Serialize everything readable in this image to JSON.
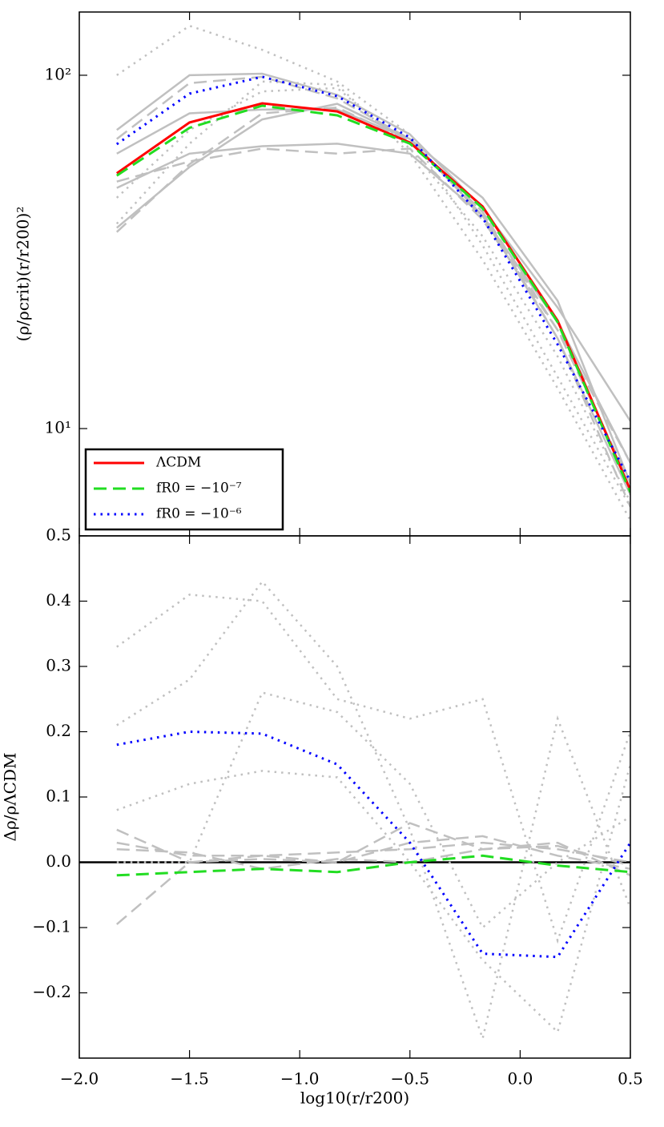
{
  "chart_data": [
    {
      "type": "line",
      "yscale": "log",
      "ylabel": "(ρ/ρcrit)(r/r200)²",
      "x": [
        -1.83,
        -1.5,
        -1.17,
        -0.83,
        -0.5,
        -0.17,
        0.17,
        0.5
      ],
      "xlim": [
        -2.0,
        0.5
      ],
      "xticks": [
        {
          "value": -2.0,
          "label": "−2.0"
        },
        {
          "value": -1.5,
          "label": "−1.5"
        },
        {
          "value": -1.0,
          "label": "−1.0"
        },
        {
          "value": -0.5,
          "label": "−0.5"
        },
        {
          "value": 0.0,
          "label": "0.0"
        },
        {
          "value": 0.5,
          "label": "0.5"
        }
      ],
      "ylim": [
        4.97,
        151
      ],
      "yticks": [
        {
          "value": 10,
          "label": "10¹"
        },
        {
          "value": 100,
          "label": "10²"
        }
      ],
      "legend": "lower left",
      "series": [
        {
          "color": "#c0c0c0",
          "style": "solid",
          "values": [
            70,
            100,
            101,
            88,
            68,
            42,
            22,
            10.5
          ]
        },
        {
          "color": "#c0c0c0",
          "style": "solid",
          "values": [
            37,
            55,
            75,
            83,
            66,
            40,
            20,
            8
          ]
        },
        {
          "color": "#c0c0c0",
          "style": "solid",
          "values": [
            48,
            60,
            63,
            64,
            60,
            40,
            18,
            6.5
          ]
        },
        {
          "color": "#c0c0c0",
          "style": "solid",
          "values": [
            60,
            78,
            80,
            80,
            66,
            45,
            23,
            7
          ]
        },
        {
          "color": "#c0c0c0",
          "style": "dashed",
          "values": [
            36,
            56,
            78,
            81,
            65,
            41,
            18,
            6
          ]
        },
        {
          "color": "#c0c0c0",
          "style": "dashed",
          "values": [
            50,
            57,
            62,
            60,
            62,
            39,
            19,
            8
          ]
        },
        {
          "color": "#c0c0c0",
          "style": "dashed",
          "values": [
            66,
            95,
            99,
            86,
            66,
            41,
            19,
            7
          ]
        },
        {
          "color": "#c0c0c0",
          "style": "dotted",
          "values": [
            100,
            138,
            118,
            96,
            68,
            33,
            14,
            6
          ]
        },
        {
          "color": "#c0c0c0",
          "style": "dotted",
          "values": [
            38,
            64,
            96,
            94,
            60,
            30,
            13,
            5.5
          ]
        },
        {
          "color": "#c0c0c0",
          "style": "dotted",
          "values": [
            45,
            70,
            90,
            92,
            62,
            35,
            16,
            6.2
          ]
        },
        {
          "name": "ΛCDM",
          "color": "#ff0000",
          "style": "solid",
          "values": [
            52.8,
            73.5,
            83.3,
            79,
            64.5,
            42.5,
            20.2,
            6.7
          ]
        },
        {
          "name": "fR0 = −10⁻⁷",
          "color": "#22dd22",
          "style": "dashed",
          "values": [
            52,
            71,
            82,
            77,
            64,
            42,
            20,
            6.6
          ]
        },
        {
          "name": "fR0 = −10⁻⁶",
          "color": "#0000ff",
          "style": "dotted",
          "values": [
            63.8,
            88.7,
            99,
            87.3,
            66.6,
            39.5,
            17.3,
            7.1
          ]
        }
      ]
    },
    {
      "type": "line",
      "yscale": "linear",
      "ylabel": "Δρ/ρΛCDM",
      "xlabel": "log10(r/r200)",
      "x": [
        -1.83,
        -1.5,
        -1.17,
        -0.83,
        -0.5,
        -0.17,
        0.17,
        0.5
      ],
      "xlim": [
        -2.0,
        0.5
      ],
      "xticks": [
        {
          "value": -2.0,
          "label": "−2.0"
        },
        {
          "value": -1.5,
          "label": "−1.5"
        },
        {
          "value": -1.0,
          "label": "−1.0"
        },
        {
          "value": -0.5,
          "label": "−0.5"
        },
        {
          "value": 0.0,
          "label": "0.0"
        },
        {
          "value": 0.5,
          "label": "0.5"
        }
      ],
      "ylim": [
        -0.3,
        0.5
      ],
      "yticks": [
        {
          "value": -0.2,
          "label": "−0.2"
        },
        {
          "value": -0.1,
          "label": "−0.1"
        },
        {
          "value": 0,
          "label": "0.0"
        },
        0.1,
        0.2,
        0.3,
        0.4,
        0.5
      ],
      "reference_line": {
        "y": 0,
        "color": "#000000"
      },
      "series": [
        {
          "color": "#c0c0c0",
          "style": "dotted",
          "values": [
            0.33,
            0.41,
            0.4,
            0.25,
            0.22,
            0.25,
            -0.12,
            0.2
          ]
        },
        {
          "color": "#c0c0c0",
          "style": "dotted",
          "values": [
            0.08,
            0.12,
            0.14,
            0.13,
            0.0,
            -0.15,
            -0.26,
            0.15
          ]
        },
        {
          "color": "#c0c0c0",
          "style": "dotted",
          "values": [
            0.21,
            0.28,
            0.43,
            0.3,
            0.05,
            -0.27,
            0.22,
            -0.07
          ]
        },
        {
          "color": "#c0c0c0",
          "style": "dotted",
          "values": [
            0.0,
            0.0,
            0.26,
            0.23,
            0.12,
            -0.1,
            0.0,
            0.07
          ]
        },
        {
          "color": "#c0c0c0",
          "style": "dashed",
          "values": [
            0.03,
            0.01,
            0.01,
            0.015,
            0.02,
            0.03,
            0.02,
            0.0
          ]
        },
        {
          "color": "#c0c0c0",
          "style": "dashed",
          "values": [
            0.05,
            0.0,
            0.005,
            0.0,
            0.06,
            0.02,
            0.03,
            -0.02
          ]
        },
        {
          "color": "#c0c0c0",
          "style": "dashed",
          "values": [
            -0.095,
            0.0,
            0.01,
            0.0,
            0.03,
            0.04,
            0.01,
            -0.01
          ]
        },
        {
          "color": "#c0c0c0",
          "style": "dashed",
          "values": [
            0.02,
            0.015,
            -0.01,
            0.005,
            0.0,
            0.02,
            0.025,
            -0.005
          ]
        },
        {
          "color": "#22dd22",
          "style": "dashed",
          "values": [
            -0.02,
            -0.015,
            -0.01,
            -0.015,
            0.0,
            0.01,
            -0.005,
            -0.015
          ]
        },
        {
          "color": "#0000ff",
          "style": "dotted",
          "values": [
            0.18,
            0.2,
            0.197,
            0.15,
            0.03,
            -0.14,
            -0.145,
            0.03
          ]
        }
      ]
    }
  ]
}
